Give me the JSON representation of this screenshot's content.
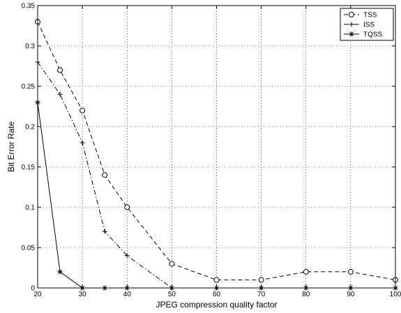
{
  "chart_data": {
    "type": "line",
    "title": "",
    "xlabel": "JPEG compression quality factor",
    "ylabel": "Bit Error Rate",
    "xlim": [
      20,
      100
    ],
    "ylim": [
      0,
      0.35
    ],
    "xticks": [
      20,
      30,
      40,
      50,
      60,
      70,
      80,
      90,
      100
    ],
    "xtick_labels": [
      "20",
      "30",
      "40",
      "50",
      "60",
      "70",
      "80",
      "90",
      "100"
    ],
    "yticks": [
      0,
      0.05,
      0.1,
      0.15,
      0.2,
      0.25,
      0.3,
      0.35
    ],
    "ytick_labels": [
      "0",
      "0.05",
      "0.1",
      "0.15",
      "0.2",
      "0.25",
      "0.3",
      "0.35"
    ],
    "grid": true,
    "legend_position": "top-right",
    "series": [
      {
        "name": "TSS",
        "marker": "circle",
        "line_style": "dashed",
        "color": "#000000",
        "x": [
          20,
          25,
          30,
          35,
          40,
          50,
          60,
          70,
          80,
          90,
          100
        ],
        "y": [
          0.33,
          0.27,
          0.22,
          0.14,
          0.1,
          0.03,
          0.01,
          0.01,
          0.02,
          0.02,
          0.01
        ]
      },
      {
        "name": "ISS",
        "marker": "plus",
        "line_style": "dashdot",
        "color": "#000000",
        "x": [
          20,
          25,
          30,
          35,
          40,
          50
        ],
        "y": [
          0.28,
          0.24,
          0.18,
          0.07,
          0.04,
          0.0
        ]
      },
      {
        "name": "TQSS",
        "marker": "star",
        "line_style": "solid",
        "color": "#000000",
        "x": [
          20,
          25,
          30,
          35,
          40,
          50,
          60,
          70,
          80,
          90,
          100
        ],
        "y": [
          0.23,
          0.02,
          0.0,
          0.0,
          0.0,
          0.0,
          0.0,
          0.0,
          0.0,
          0.0,
          0.0
        ]
      }
    ]
  }
}
